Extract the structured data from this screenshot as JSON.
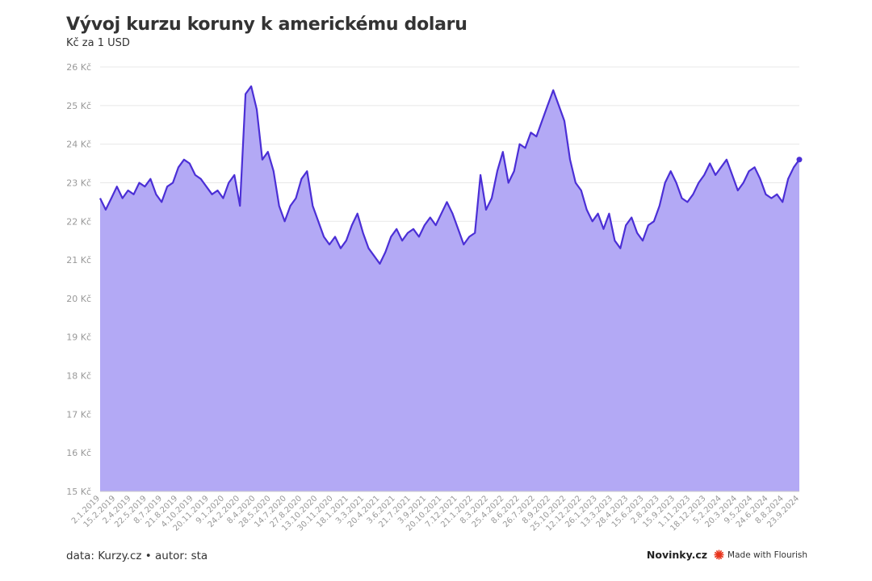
{
  "header": {
    "title": "Vývoj kurzu koruny k americkému dolaru",
    "subtitle": "Kč za 1 USD"
  },
  "footer": {
    "source": "data: Kurzy.cz • autor: sta",
    "brand": "Novinky.cz",
    "made_with": "Made with Flourish"
  },
  "colors": {
    "line": "#4b2fd6",
    "area": "#b3a9f5",
    "grid": "#e8e8e8",
    "axis_text": "#999999",
    "flourish_icon": "#e8341c"
  },
  "chart_data": {
    "type": "area",
    "title": "Vývoj kurzu koruny k americkému dolaru",
    "subtitle": "Kč za 1 USD",
    "ylim": [
      15,
      26
    ],
    "y_ticks": [
      "15 Kč",
      "16 Kč",
      "17 Kč",
      "18 Kč",
      "19 Kč",
      "20 Kč",
      "21 Kč",
      "22 Kč",
      "23 Kč",
      "24 Kč",
      "25 Kč",
      "26 Kč"
    ],
    "y_tick_values": [
      15,
      16,
      17,
      18,
      19,
      20,
      21,
      22,
      23,
      24,
      25,
      26
    ],
    "x_ticks": [
      "2.1.2019",
      "15.2.2019",
      "2.4.2019",
      "22.5.2019",
      "8.7.2019",
      "21.8.2019",
      "4.10.2019",
      "20.11.2019",
      "9.1.2020",
      "24.2.2020",
      "8.4.2020",
      "28.5.2020",
      "14.7.2020",
      "27.8.2020",
      "13.10.2020",
      "30.11.2020",
      "18.1.2021",
      "3.3.2021",
      "20.4.2021",
      "3.6.2021",
      "21.7.2021",
      "3.9.2021",
      "20.10.2021",
      "7.12.2021",
      "21.1.2022",
      "8.3.2022",
      "25.4.2022",
      "8.6.2022",
      "26.7.2022",
      "8.9.2022",
      "25.10.2022",
      "12.12.2022",
      "26.1.2023",
      "13.3.2023",
      "28.4.2023",
      "15.6.2023",
      "2.8.2023",
      "15.9.2023",
      "1.11.2023",
      "18.12.2023",
      "5.2.2024",
      "20.3.2024",
      "9.5.2024",
      "24.6.2024",
      "8.8.2024",
      "23.9.2024"
    ],
    "grid": true,
    "series": [
      {
        "values": [
          22.6,
          22.3,
          22.6,
          22.9,
          22.6,
          22.8,
          22.7,
          23.0,
          22.9,
          23.1,
          22.7,
          22.5,
          22.9,
          23.0,
          23.4,
          23.6,
          23.5,
          23.2,
          23.1,
          22.9,
          22.7,
          22.8,
          22.6,
          23.0,
          23.2,
          22.4,
          25.3,
          25.5,
          24.9,
          23.6,
          23.8,
          23.3,
          22.4,
          22.0,
          22.4,
          22.6,
          23.1,
          23.3,
          22.4,
          22.0,
          21.6,
          21.4,
          21.6,
          21.3,
          21.5,
          21.9,
          22.2,
          21.7,
          21.3,
          21.1,
          20.9,
          21.2,
          21.6,
          21.8,
          21.5,
          21.7,
          21.8,
          21.6,
          21.9,
          22.1,
          21.9,
          22.2,
          22.5,
          22.2,
          21.8,
          21.4,
          21.6,
          21.7,
          23.2,
          22.3,
          22.6,
          23.3,
          23.8,
          23.0,
          23.3,
          24.0,
          23.9,
          24.3,
          24.2,
          24.6,
          25.0,
          25.4,
          25.0,
          24.6,
          23.6,
          23.0,
          22.8,
          22.3,
          22.0,
          22.2,
          21.8,
          22.2,
          21.5,
          21.3,
          21.9,
          22.1,
          21.7,
          21.5,
          21.9,
          22.0,
          22.4,
          23.0,
          23.3,
          23.0,
          22.6,
          22.5,
          22.7,
          23.0,
          23.2,
          23.5,
          23.2,
          23.4,
          23.6,
          23.2,
          22.8,
          23.0,
          23.3,
          23.4,
          23.1,
          22.7,
          22.6,
          22.7,
          22.5,
          23.1,
          23.4,
          23.6
        ]
      }
    ]
  }
}
